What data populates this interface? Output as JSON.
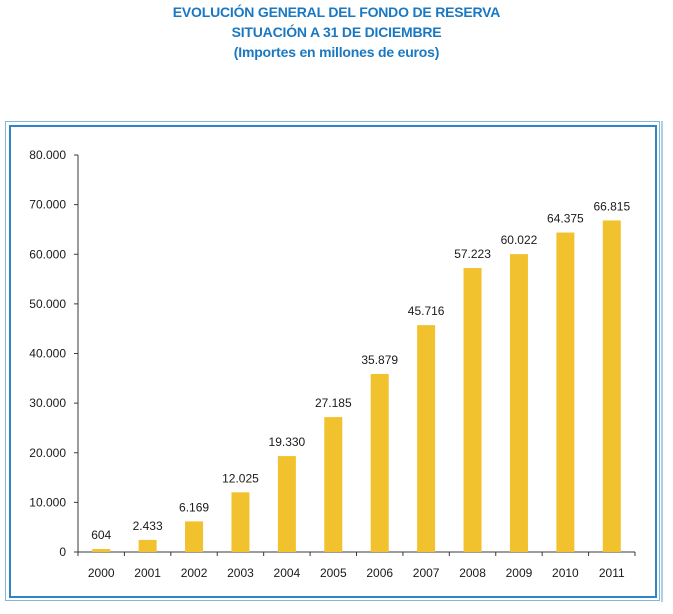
{
  "header": {
    "title_line1": "EVOLUCIÓN GENERAL DEL FONDO DE RESERVA",
    "title_line2": "SITUACIÓN A 31 DE DICIEMBRE",
    "title_line3": "(Importes en millones de euros)"
  },
  "colors": {
    "title": "#1a78c2",
    "bar": "#f2c12e",
    "frame_inner": "#2f86c4",
    "frame_outer": "#7fb8d8",
    "axis": "#3a3a3a"
  },
  "chart_data": {
    "type": "bar",
    "title": "EVOLUCIÓN GENERAL DEL FONDO DE RESERVA — SITUACIÓN A 31 DE DICIEMBRE (Importes en millones de euros)",
    "xlabel": "",
    "ylabel": "",
    "categories": [
      "2000",
      "2001",
      "2002",
      "2003",
      "2004",
      "2005",
      "2006",
      "2007",
      "2008",
      "2009",
      "2010",
      "2011"
    ],
    "values": [
      604,
      2433,
      6169,
      12025,
      19330,
      27185,
      35879,
      45716,
      57223,
      60022,
      64375,
      66815
    ],
    "data_labels": [
      "604",
      "2.433",
      "6.169",
      "12.025",
      "19.330",
      "27.185",
      "35.879",
      "45.716",
      "57.223",
      "60.022",
      "64.375",
      "66.815"
    ],
    "ylim": [
      0,
      80000
    ],
    "yticks": [
      0,
      10000,
      20000,
      30000,
      40000,
      50000,
      60000,
      70000,
      80000
    ],
    "ytick_labels": [
      "0",
      "10.000",
      "20.000",
      "30.000",
      "40.000",
      "50.000",
      "60.000",
      "70.000",
      "80.000"
    ],
    "grid": false,
    "legend": "none"
  }
}
